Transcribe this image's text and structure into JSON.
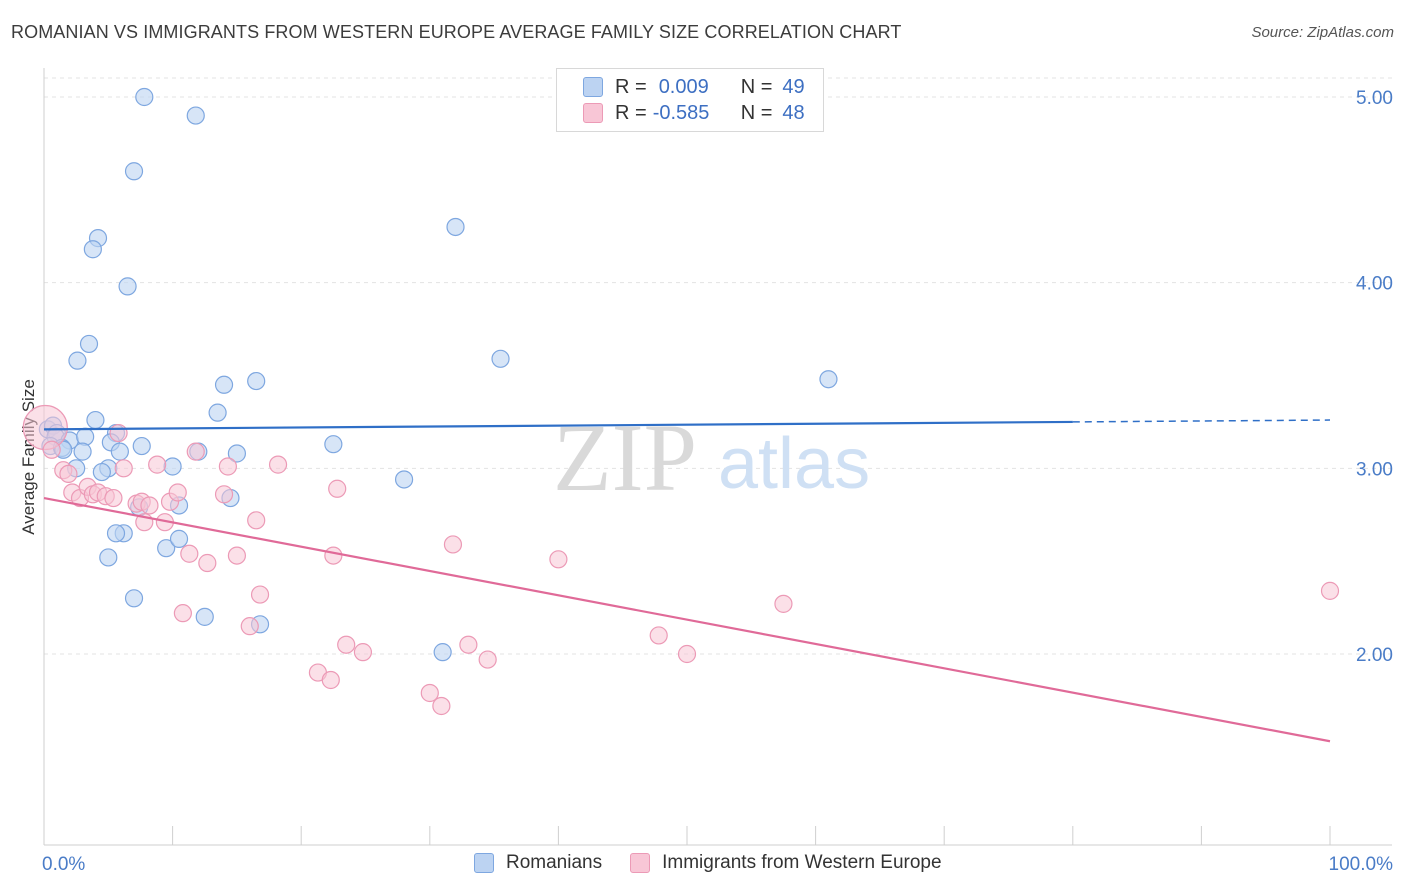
{
  "title": "ROMANIAN VS IMMIGRANTS FROM WESTERN EUROPE AVERAGE FAMILY SIZE CORRELATION CHART",
  "source": "Source: ZipAtlas.com",
  "watermark": {
    "zip": "ZIP",
    "atlas": "atlas"
  },
  "legend_top": {
    "rows": [
      {
        "r_label": "R =",
        "r_value": "0.009",
        "n_label": "N =",
        "n_value": "49"
      },
      {
        "r_label": "R =",
        "r_value": "-0.585",
        "n_label": "N =",
        "n_value": "48"
      }
    ]
  },
  "legend_bottom": {
    "items": [
      {
        "label": "Romanians"
      },
      {
        "label": "Immigrants from Western Europe"
      }
    ]
  },
  "colors": {
    "blue_fill": "#bcd3f2",
    "blue_stroke": "#7ea7e0",
    "blue_line": "#2f6fc7",
    "pink_fill": "#f8c6d6",
    "pink_stroke": "#ec9ab6",
    "pink_line": "#e06a98",
    "grid": "#e3e3e3",
    "axis_text": "#4a7cc7"
  },
  "chart_data": {
    "type": "scatter",
    "title": "ROMANIAN VS IMMIGRANTS FROM WESTERN EUROPE AVERAGE FAMILY SIZE CORRELATION CHART",
    "xlabel": "",
    "ylabel": "Average Family Size",
    "xlim": [
      0,
      100
    ],
    "ylim": [
      1.0,
      5.15
    ],
    "x_tick_labels": [
      "0.0%",
      "100.0%"
    ],
    "y_ticks": [
      2.0,
      3.0,
      4.0,
      5.0
    ],
    "y_tick_labels": [
      "2.00",
      "3.00",
      "4.00",
      "5.00"
    ],
    "series": [
      {
        "name": "Romanians",
        "color": "blue",
        "r": 0.009,
        "n": 49,
        "trend": {
          "x0": 0,
          "y0": 3.21,
          "x1": 80,
          "y1": 3.25,
          "dash_to_x": 100,
          "dash_to_y": 3.26
        },
        "points": [
          [
            7.8,
            5.0
          ],
          [
            11.8,
            4.9
          ],
          [
            7.0,
            4.6
          ],
          [
            32.0,
            4.3
          ],
          [
            4.2,
            4.24
          ],
          [
            3.8,
            4.18
          ],
          [
            6.5,
            3.98
          ],
          [
            3.5,
            3.67
          ],
          [
            2.6,
            3.58
          ],
          [
            35.5,
            3.59
          ],
          [
            14.0,
            3.45
          ],
          [
            16.5,
            3.47
          ],
          [
            61.0,
            3.48
          ],
          [
            13.5,
            3.3
          ],
          [
            4.0,
            3.26
          ],
          [
            0.3,
            3.21
          ],
          [
            0.7,
            3.23
          ],
          [
            1.0,
            3.19
          ],
          [
            0.9,
            3.17
          ],
          [
            2.0,
            3.15
          ],
          [
            3.2,
            3.17
          ],
          [
            5.6,
            3.19
          ],
          [
            0.5,
            3.12
          ],
          [
            1.4,
            3.11
          ],
          [
            5.2,
            3.14
          ],
          [
            7.6,
            3.12
          ],
          [
            22.5,
            3.13
          ],
          [
            15.0,
            3.08
          ],
          [
            2.5,
            3.0
          ],
          [
            5.0,
            3.0
          ],
          [
            4.5,
            2.98
          ],
          [
            10.0,
            3.01
          ],
          [
            28.0,
            2.94
          ],
          [
            14.5,
            2.84
          ],
          [
            10.5,
            2.8
          ],
          [
            7.4,
            2.79
          ],
          [
            6.2,
            2.65
          ],
          [
            5.6,
            2.65
          ],
          [
            9.5,
            2.57
          ],
          [
            10.5,
            2.62
          ],
          [
            5.0,
            2.52
          ],
          [
            7.0,
            2.3
          ],
          [
            12.5,
            2.2
          ],
          [
            16.8,
            2.16
          ],
          [
            31.0,
            2.01
          ],
          [
            5.9,
            3.09
          ],
          [
            1.5,
            3.1
          ],
          [
            12.0,
            3.09
          ],
          [
            3.0,
            3.09
          ]
        ]
      },
      {
        "name": "Immigrants from Western Europe",
        "color": "pink",
        "r": -0.585,
        "n": 48,
        "trend": {
          "x0": 0,
          "y0": 2.84,
          "x1": 100,
          "y1": 1.53
        },
        "points": [
          [
            0.1,
            3.22
          ],
          [
            0.6,
            3.1
          ],
          [
            5.8,
            3.19
          ],
          [
            1.5,
            2.99
          ],
          [
            1.9,
            2.97
          ],
          [
            6.2,
            3.0
          ],
          [
            8.8,
            3.02
          ],
          [
            14.3,
            3.01
          ],
          [
            18.2,
            3.02
          ],
          [
            11.8,
            3.09
          ],
          [
            2.2,
            2.87
          ],
          [
            2.8,
            2.84
          ],
          [
            3.4,
            2.9
          ],
          [
            3.8,
            2.86
          ],
          [
            4.2,
            2.87
          ],
          [
            4.8,
            2.85
          ],
          [
            5.4,
            2.84
          ],
          [
            7.2,
            2.81
          ],
          [
            7.6,
            2.82
          ],
          [
            8.2,
            2.8
          ],
          [
            9.8,
            2.82
          ],
          [
            10.4,
            2.87
          ],
          [
            14.0,
            2.86
          ],
          [
            22.8,
            2.89
          ],
          [
            7.8,
            2.71
          ],
          [
            9.4,
            2.71
          ],
          [
            16.5,
            2.72
          ],
          [
            11.3,
            2.54
          ],
          [
            12.7,
            2.49
          ],
          [
            15.0,
            2.53
          ],
          [
            22.5,
            2.53
          ],
          [
            31.8,
            2.59
          ],
          [
            40.0,
            2.51
          ],
          [
            10.8,
            2.22
          ],
          [
            16.0,
            2.15
          ],
          [
            16.8,
            2.32
          ],
          [
            57.5,
            2.27
          ],
          [
            23.5,
            2.05
          ],
          [
            24.8,
            2.01
          ],
          [
            33.0,
            2.05
          ],
          [
            34.5,
            1.97
          ],
          [
            47.8,
            2.1
          ],
          [
            50.0,
            2.0
          ],
          [
            21.3,
            1.9
          ],
          [
            22.3,
            1.86
          ],
          [
            30.0,
            1.79
          ],
          [
            30.9,
            1.72
          ],
          [
            100.0,
            2.34
          ]
        ]
      }
    ]
  }
}
